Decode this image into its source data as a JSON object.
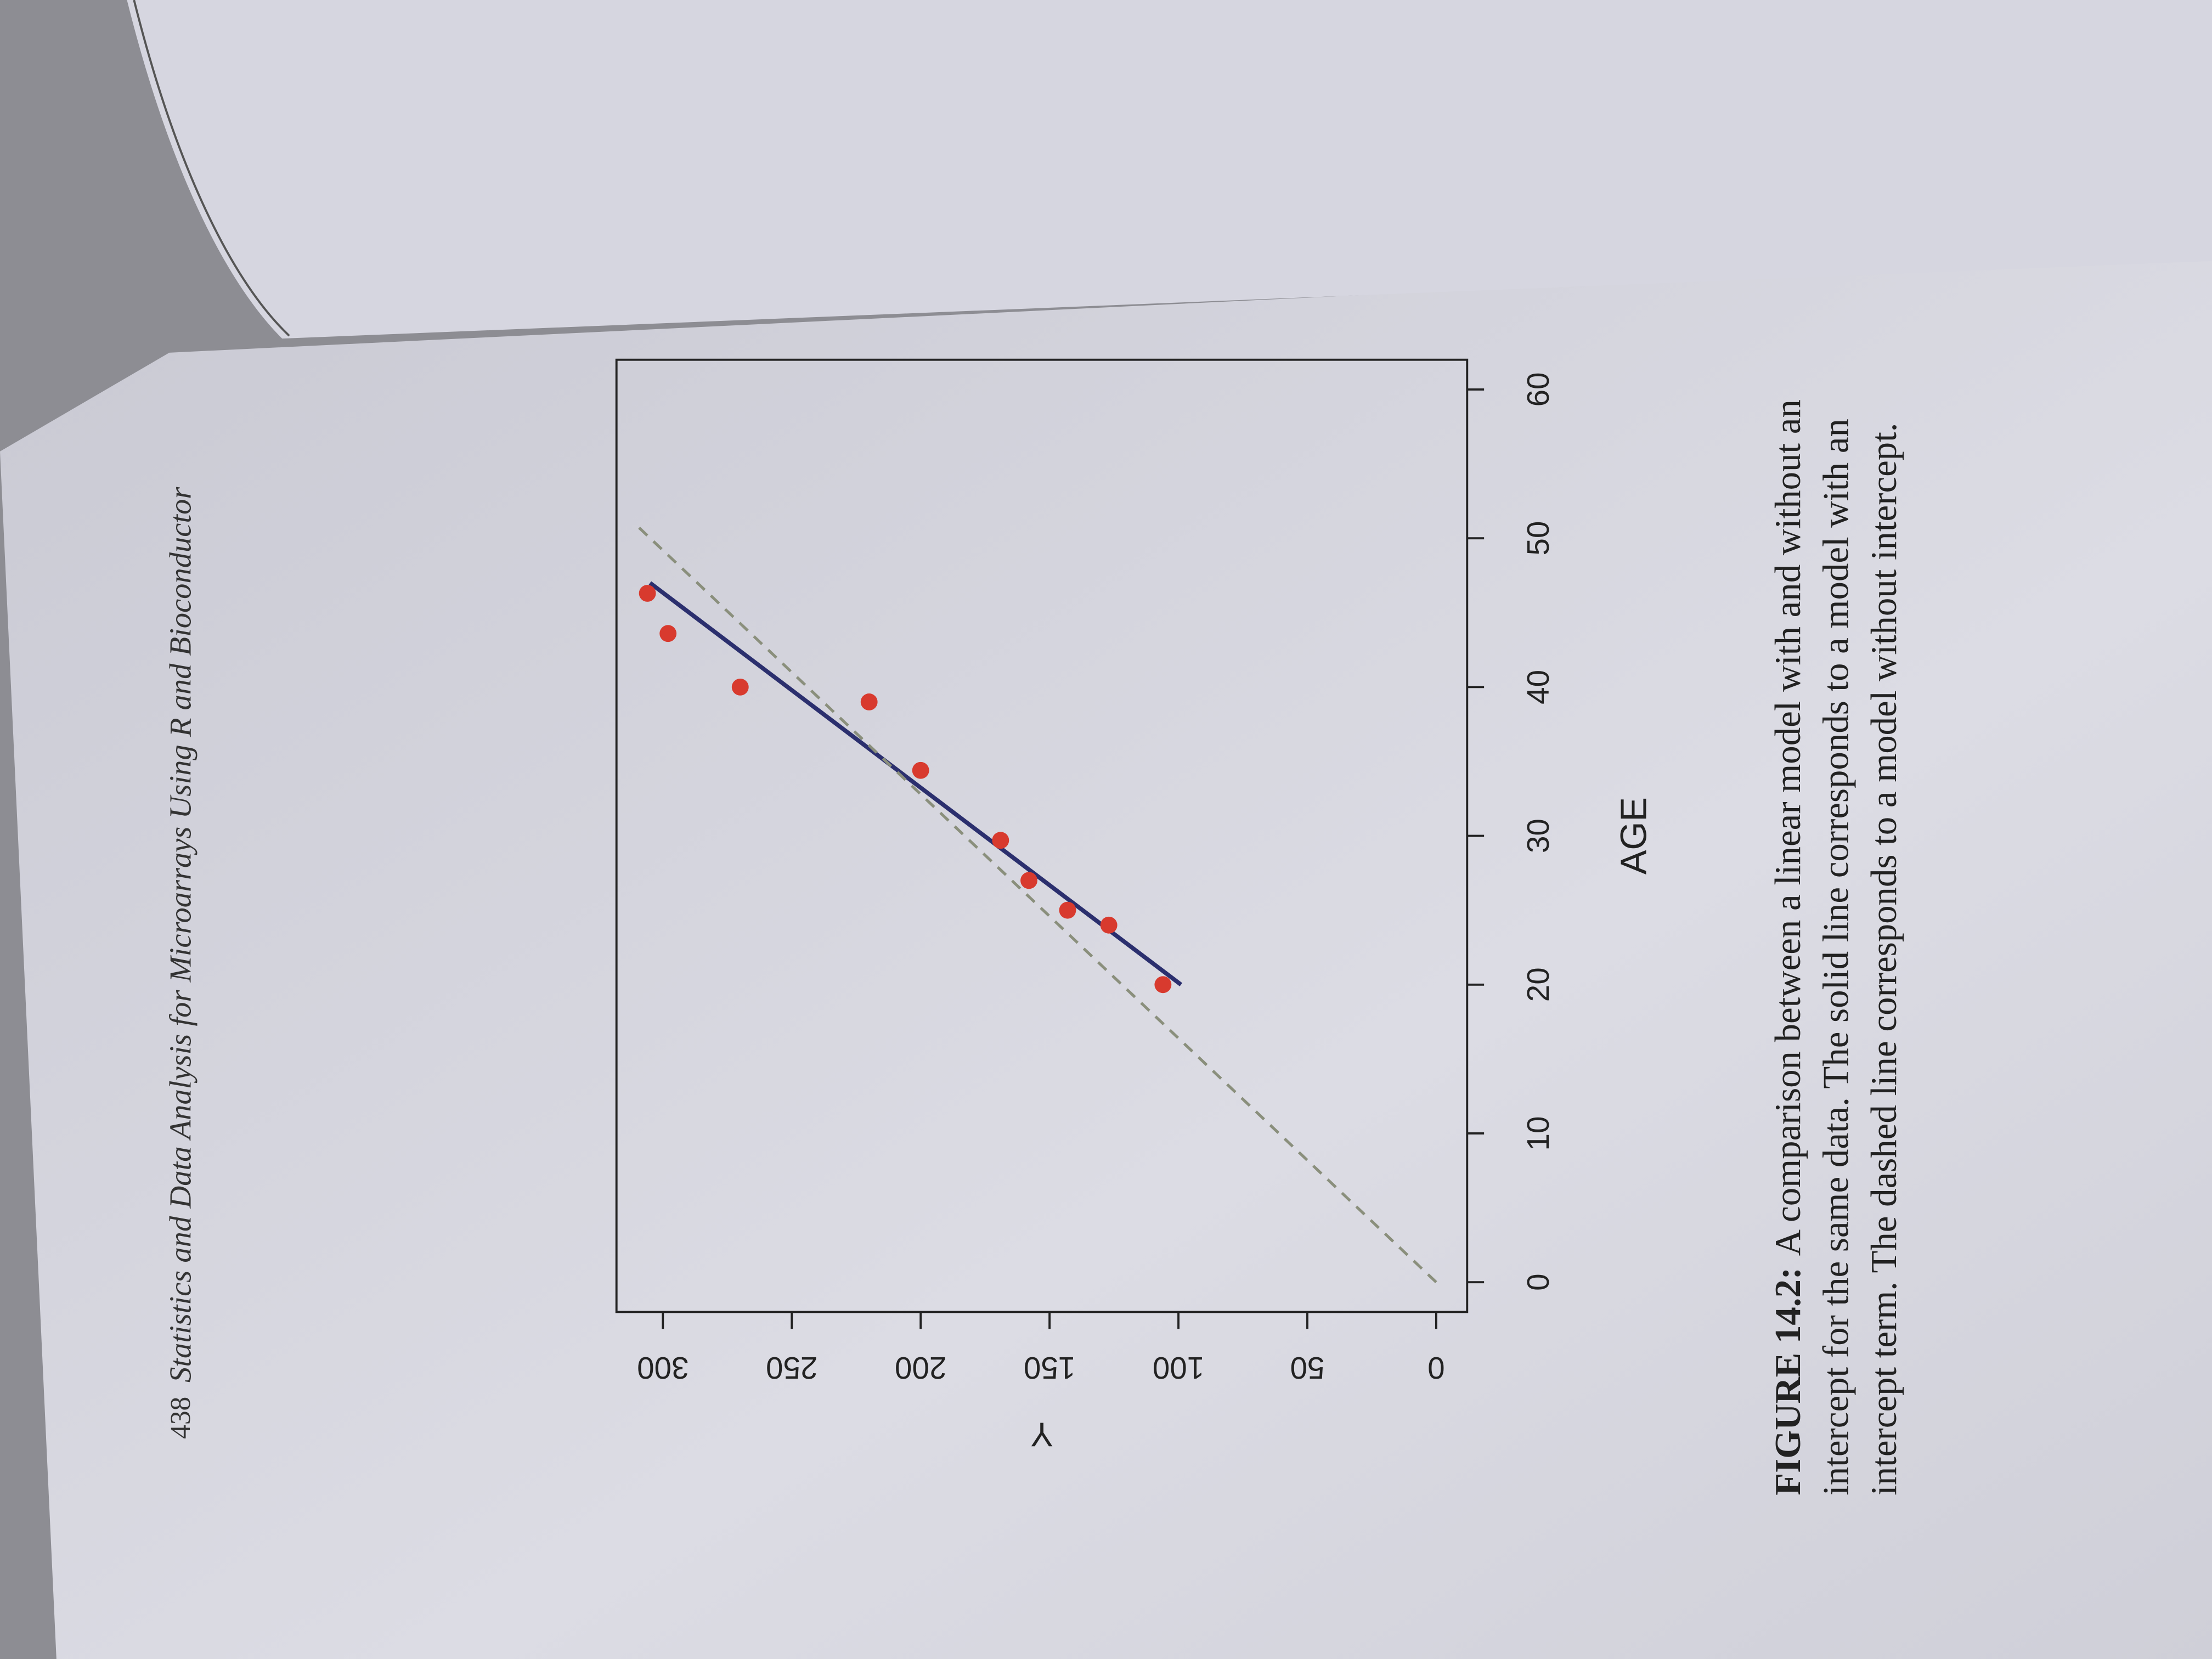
{
  "header": {
    "page_number": "438",
    "title": "Statistics and Data Analysis for Microarrays Using R and Bioconductor"
  },
  "chart_data": {
    "type": "scatter",
    "xlabel": "AGE",
    "ylabel": "Y",
    "x": [
      20,
      24,
      25,
      27,
      29.7,
      34.4,
      39,
      40,
      43.6,
      46.3
    ],
    "values": [
      106,
      127,
      143,
      158,
      169,
      200,
      220,
      270,
      298,
      306
    ],
    "color": "#d83a2e",
    "lines": [
      {
        "x": [
          20,
          47
        ],
        "values": [
          99,
          305
        ],
        "color": "#2b2f6e",
        "dash": false
      },
      {
        "x": [
          0,
          51
        ],
        "values": [
          0,
          311
        ],
        "color": "#8a8f7c",
        "dash": true
      }
    ],
    "xlim": [
      -2,
      62
    ],
    "ylim": [
      -12,
      318
    ],
    "xticks": [
      0,
      10,
      20,
      30,
      40,
      50,
      60
    ],
    "yticks": [
      0,
      50,
      100,
      150,
      200,
      250,
      300
    ]
  },
  "caption": {
    "label": "FIGURE 14.2:",
    "lines": [
      "A comparison between a linear model with and without an",
      "intercept for the same data. The solid line corresponds to a model with an",
      "intercept term. The dashed line corresponds to a model without intercept."
    ]
  }
}
